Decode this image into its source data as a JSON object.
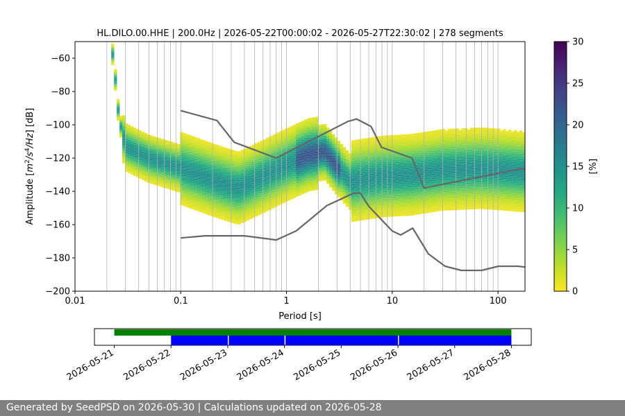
{
  "chart_data": [
    {
      "type": "heatmap",
      "title": "HL.DILO.00.HHE | 200.0Hz | 2026-05-22T00:00:02 - 2026-05-27T22:30:02 | 278 segments",
      "xlabel": "Period [s]",
      "ylabel": "Amplitude [m2/s4/Hz] [dB]",
      "x_scale": "log",
      "xlim": [
        0.01,
        180
      ],
      "ylim": [
        -200,
        -50
      ],
      "x_ticks": [
        0.01,
        0.1,
        1,
        10,
        100
      ],
      "x_tick_labels": [
        "0.01",
        "0.1",
        "1",
        "10",
        "100"
      ],
      "y_ticks": [
        -200,
        -180,
        -160,
        -140,
        -120,
        -100,
        -80,
        -60
      ],
      "y_tick_labels": [
        "−200",
        "−180",
        "−160",
        "−140",
        "−120",
        "−100",
        "−80",
        "−60"
      ],
      "grid": "vertical log grid",
      "colormap": "viridis_r",
      "colorbar": {
        "label": "[%]",
        "range": [
          0,
          30
        ],
        "ticks": [
          0,
          5,
          10,
          15,
          20,
          25,
          30
        ],
        "tick_labels": [
          "0",
          "5",
          "10",
          "15",
          "20",
          "25",
          "30"
        ]
      },
      "density_ridge": [
        {
          "period": 0.022,
          "db": -50
        },
        {
          "period": 0.024,
          "db": -72
        },
        {
          "period": 0.026,
          "db": -96
        },
        {
          "period": 0.03,
          "db": -113
        },
        {
          "period": 0.05,
          "db": -120
        },
        {
          "period": 0.1,
          "db": -126
        },
        {
          "period": 0.2,
          "db": -133
        },
        {
          "period": 0.35,
          "db": -138
        },
        {
          "period": 0.6,
          "db": -131
        },
        {
          "period": 1.0,
          "db": -124
        },
        {
          "period": 1.6,
          "db": -118
        },
        {
          "period": 2.3,
          "db": -116
        },
        {
          "period": 3.0,
          "db": -125
        },
        {
          "period": 4.0,
          "db": -134
        },
        {
          "period": 5.0,
          "db": -133
        },
        {
          "period": 8.0,
          "db": -131
        },
        {
          "period": 15.0,
          "db": -130
        },
        {
          "period": 30.0,
          "db": -127
        },
        {
          "period": 70.0,
          "db": -126
        },
        {
          "period": 180.0,
          "db": -128
        }
      ],
      "nhnm": {
        "period": [
          0.1,
          0.22,
          0.32,
          0.8,
          3.8,
          4.6,
          6.3,
          7.9,
          15.4,
          20.0,
          354.8
        ],
        "db": [
          -91.5,
          -97.4,
          -110.5,
          -120.0,
          -98.0,
          -96.5,
          -101.0,
          -113.5,
          -120.0,
          -138.0,
          -126.0
        ]
      },
      "nlnm": {
        "period": [
          0.1,
          0.17,
          0.4,
          0.8,
          1.24,
          2.4,
          4.3,
          5.0,
          6.0,
          10.0,
          12.0,
          15.6,
          21.9,
          31.6,
          45.0,
          70.0,
          101.0,
          154.0,
          180.0
        ],
        "db": [
          -168.0,
          -166.7,
          -166.7,
          -169.2,
          -163.7,
          -148.6,
          -141.1,
          -141.1,
          -149.0,
          -163.8,
          -166.2,
          -162.1,
          -177.5,
          -185.0,
          -187.5,
          -187.5,
          -185.0,
          -185.0,
          -185.5
        ]
      }
    },
    {
      "type": "timeline",
      "x_tick_labels": [
        "2026-05-21",
        "2026-05-22",
        "2026-05-23",
        "2026-05-24",
        "2026-05-25",
        "2026-05-26",
        "2026-05-27",
        "2026-05-28"
      ],
      "bars": [
        {
          "color": "#008000",
          "start": "2026-05-21",
          "end": "2026-05-28"
        },
        {
          "color": "#0000ff",
          "start": "2026-05-22",
          "end": "2026-05-28",
          "gaps": [
            "2026-05-23",
            "2026-05-24",
            "2026-05-26"
          ]
        }
      ]
    }
  ],
  "footer": {
    "text": "Generated by SeedPSD on 2026-05-30 | Calculations updated on 2026-05-28"
  }
}
